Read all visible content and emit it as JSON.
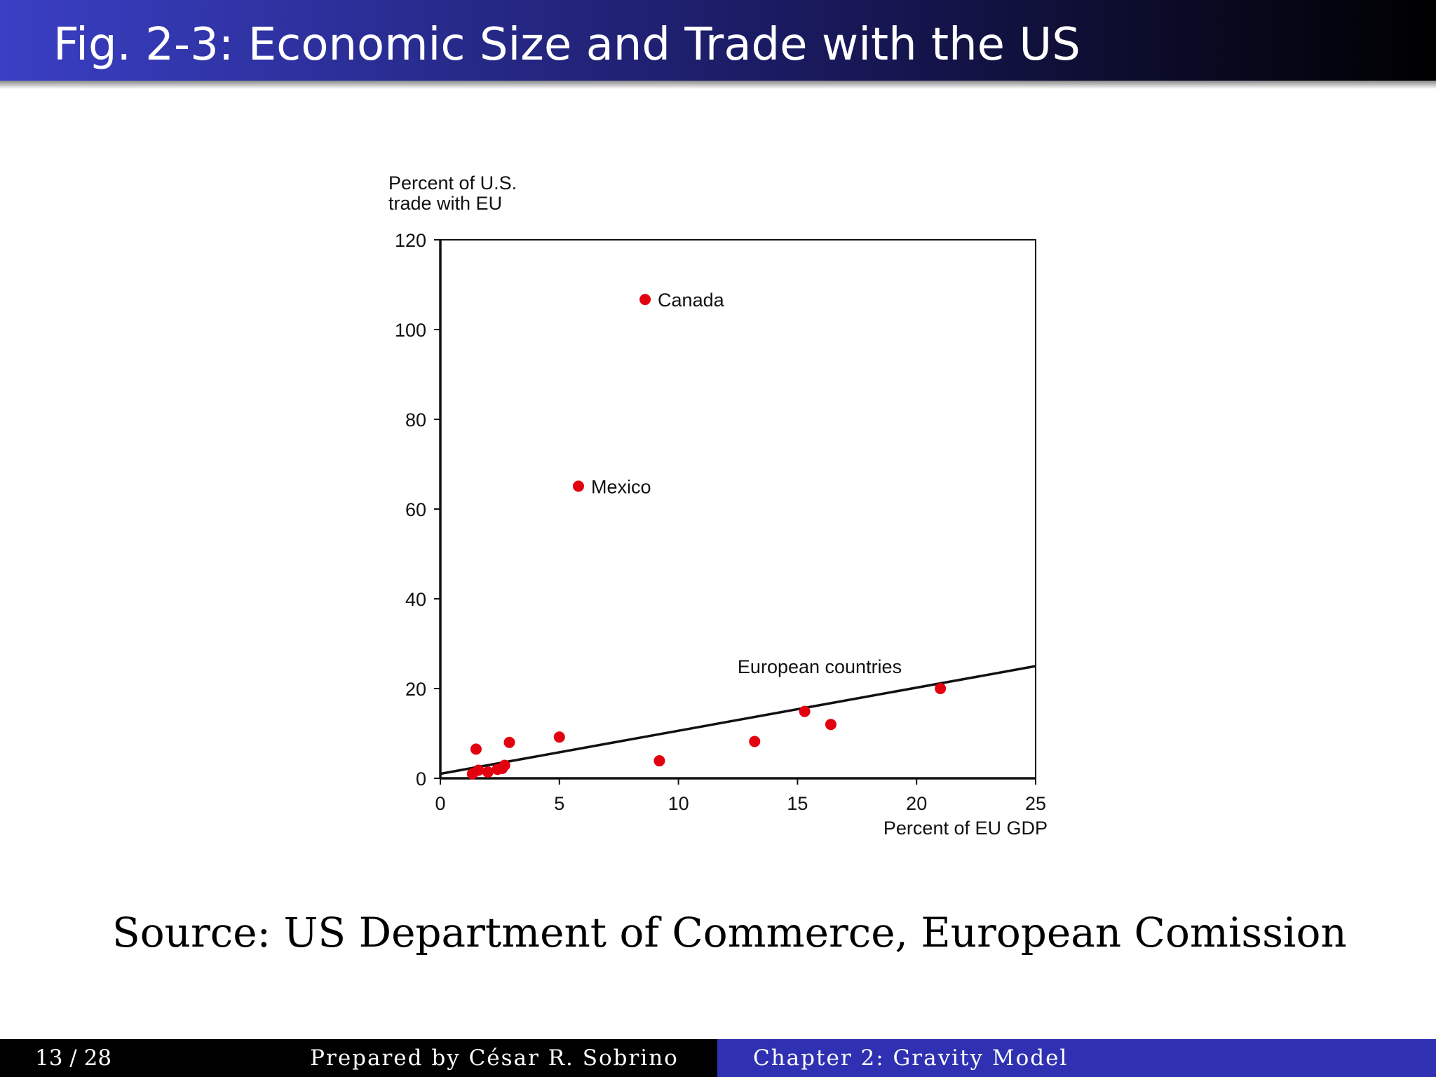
{
  "slide": {
    "title": "Fig. 2-3: Economic Size and Trade with the US",
    "source": "Source: US Department of Commerce, European Comission",
    "footer": {
      "page": "13 / 28",
      "author": "Prepared by César R. Sobrino",
      "chapter": "Chapter 2: Gravity Model"
    }
  },
  "chart_data": {
    "type": "scatter",
    "xlabel": "Percent of EU GDP",
    "ylabel": [
      "Percent of U.S.",
      "trade with EU"
    ],
    "xlim": [
      0,
      25
    ],
    "ylim": [
      0,
      120
    ],
    "xticks": [
      0,
      5,
      10,
      15,
      20,
      25
    ],
    "yticks": [
      0,
      20,
      40,
      60,
      80,
      100,
      120
    ],
    "series": [
      {
        "color": "#e3000f",
        "x": [
          8.6,
          5.8,
          1.5,
          1.35,
          1.6,
          2.0,
          2.4,
          2.6,
          2.7,
          2.9,
          5.0,
          9.2,
          13.2,
          15.3,
          16.4,
          21.0
        ],
        "values": [
          106.7,
          65.1,
          6.5,
          1.0,
          1.8,
          1.4,
          2.0,
          2.2,
          2.9,
          8.0,
          9.2,
          3.9,
          8.2,
          14.9,
          12.0,
          20.0
        ],
        "labels": [
          "Canada",
          "Mexico",
          null,
          null,
          null,
          null,
          null,
          null,
          null,
          null,
          null,
          null,
          null,
          null,
          null,
          null
        ]
      }
    ],
    "trend": {
      "x": [
        0,
        25
      ],
      "values": [
        1,
        25
      ],
      "color": "#111111",
      "label": "European countries"
    }
  }
}
